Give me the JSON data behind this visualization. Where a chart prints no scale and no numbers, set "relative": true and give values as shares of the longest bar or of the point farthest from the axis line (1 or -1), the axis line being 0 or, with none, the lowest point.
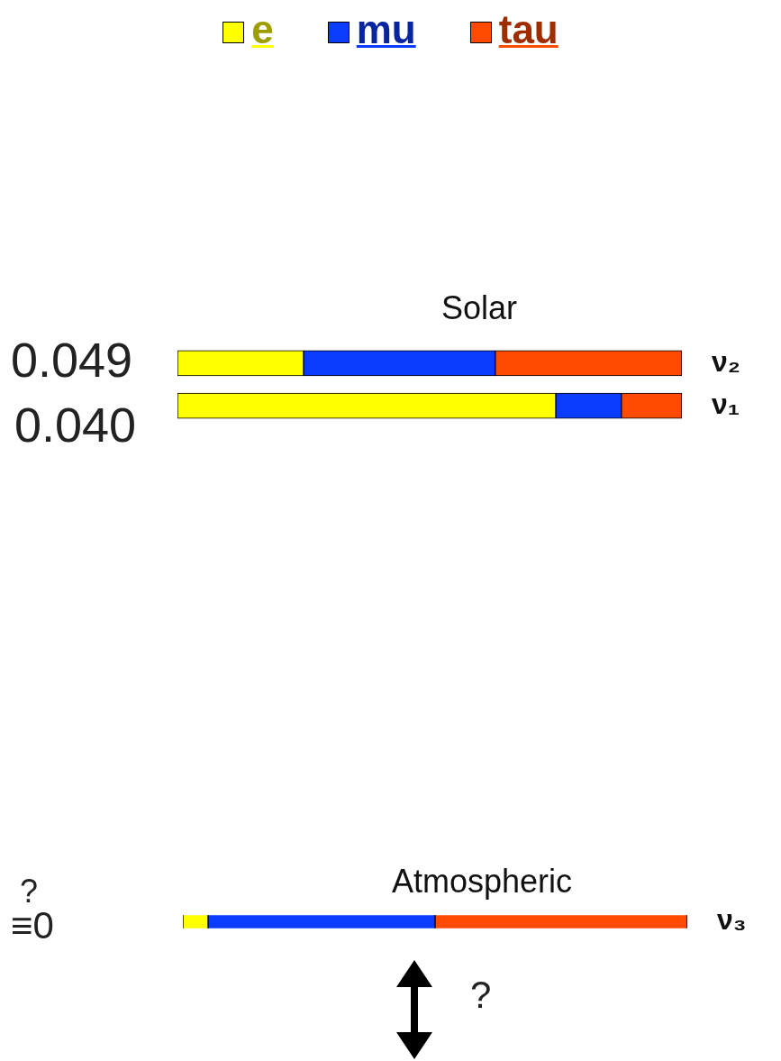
{
  "chart_data": [
    {
      "type": "bar",
      "title": "Solar",
      "orientation": "horizontal",
      "stacked": true,
      "relative": true,
      "legend": "top",
      "categories": [
        "ν₂",
        "ν₁"
      ],
      "series": [
        {
          "name": "e",
          "color": "#ffff00",
          "values": [
            0.25,
            0.75
          ]
        },
        {
          "name": "mu",
          "color": "#0a3cff",
          "values": [
            0.38,
            0.13
          ]
        },
        {
          "name": "tau",
          "color": "#ff4a00",
          "values": [
            0.37,
            0.12
          ]
        }
      ],
      "annotations": [
        "0.049",
        "0.040"
      ]
    },
    {
      "type": "bar",
      "title": "Atmospheric",
      "orientation": "horizontal",
      "stacked": true,
      "relative": true,
      "categories": [
        "ν₃"
      ],
      "series": [
        {
          "color": "#ffff00",
          "values": [
            0.05
          ]
        },
        {
          "color": "#0a3cff",
          "values": [
            0.45
          ]
        },
        {
          "color": "#ff4a00",
          "values": [
            0.5
          ]
        }
      ],
      "annotations": [
        "?",
        "≡0",
        "?"
      ]
    }
  ]
}
